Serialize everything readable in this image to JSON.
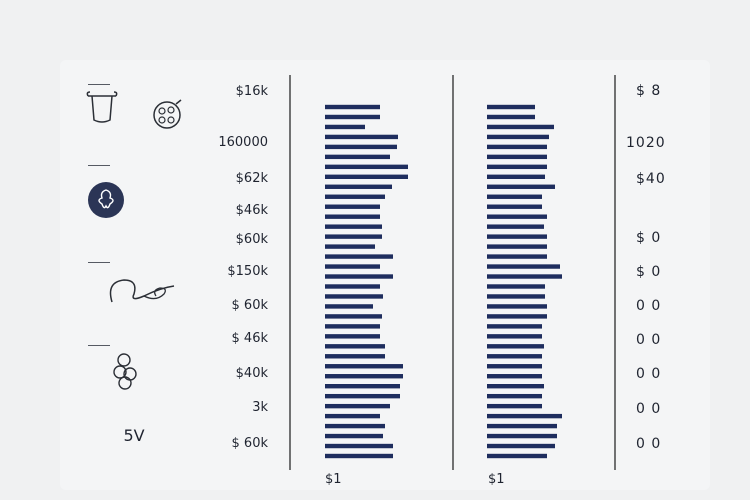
{
  "title": "",
  "left_icons": [
    {
      "icon": "basket-icon",
      "caption": "",
      "extra_icon": "yarn-ball-icon"
    },
    {
      "icon": "clover-badge-icon",
      "caption": ""
    },
    {
      "icon": "loop-icon",
      "caption": ""
    },
    {
      "icon": "stacked-balls-icon",
      "caption": ""
    },
    {
      "icon": "glyph-icon",
      "glyph": "5V",
      "caption": ""
    }
  ],
  "left_axis_labels": [
    "$16k",
    "160000",
    "$62k",
    "$46k",
    "$60k",
    "$150k",
    "$ 60k",
    "$ 46k",
    "$40k",
    "3k",
    "$ 60k"
  ],
  "right_axis_labels": [
    "$ 8",
    "1020",
    "$40",
    "$ 0",
    "$ 0",
    "0 0",
    "0 0",
    "0 0",
    "0 0",
    "0 0"
  ],
  "colors": {
    "bar": "#1e2d5e",
    "axis": "#1a1a1a",
    "background": "#f0f1f2"
  },
  "chart_data": {
    "type": "bar",
    "orientation": "horizontal",
    "grid": false,
    "panels": [
      {
        "label": "",
        "axis_start_label": "$1",
        "axis_left_mark": "",
        "series": [
          {
            "values": [
              55,
              55,
              40,
              73,
              72,
              65,
              83,
              83,
              67,
              60,
              55,
              55,
              57,
              57,
              50,
              68,
              55,
              68,
              55,
              58,
              48,
              57,
              55,
              55,
              60,
              60,
              78,
              78,
              75,
              75,
              65,
              55,
              60,
              58,
              68,
              68
            ]
          }
        ]
      },
      {
        "label": "",
        "axis_start_label": "$1",
        "axis_left_mark": "",
        "axis_right_mark": "",
        "series": [
          {
            "values": [
              48,
              48,
              67,
              62,
              60,
              60,
              60,
              58,
              68,
              55,
              55,
              60,
              57,
              60,
              60,
              60,
              73,
              75,
              58,
              58,
              60,
              60,
              55,
              55,
              57,
              55,
              55,
              55,
              57,
              55,
              55,
              75,
              70,
              70,
              68,
              60
            ]
          }
        ]
      }
    ]
  }
}
